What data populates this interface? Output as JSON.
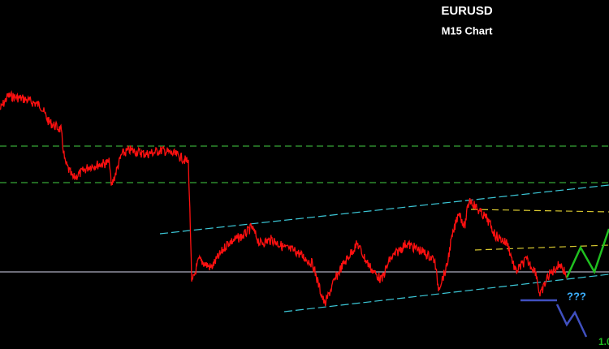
{
  "chart_data": {
    "type": "line",
    "title": "EURUSD",
    "subtitle": "M15 Chart",
    "annotations": [
      "???",
      "1.0"
    ]
  }
}
